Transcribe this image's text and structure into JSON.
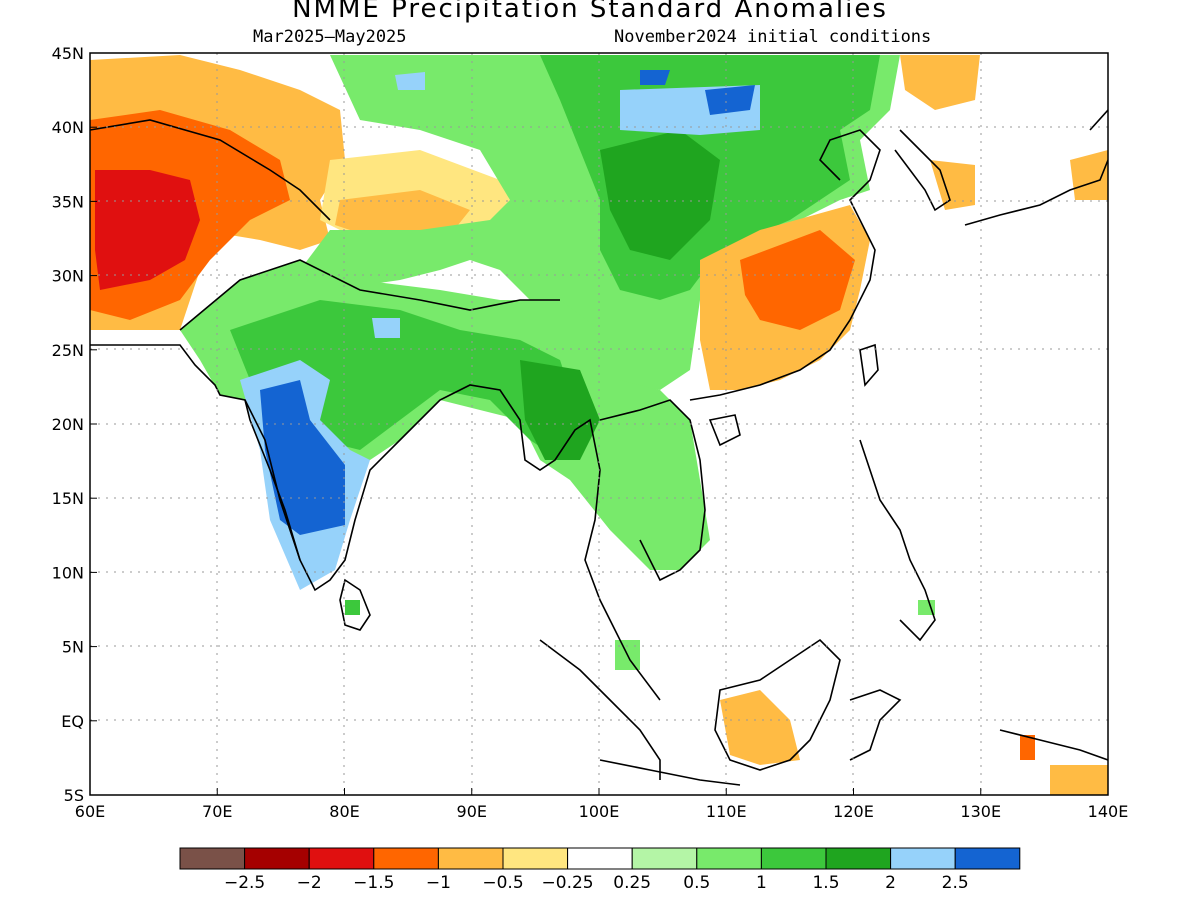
{
  "header": {
    "title": "NMME Precipitation Standard Anomalies",
    "period": "Mar2025–May2025",
    "init": "November2024 initial conditions"
  },
  "map": {
    "lon_range": [
      60,
      140
    ],
    "lat_range": [
      -5,
      45
    ],
    "lon_ticks": [
      {
        "value": 60,
        "label": "60E"
      },
      {
        "value": 70,
        "label": "70E"
      },
      {
        "value": 80,
        "label": "80E"
      },
      {
        "value": 90,
        "label": "90E"
      },
      {
        "value": 100,
        "label": "100E"
      },
      {
        "value": 110,
        "label": "110E"
      },
      {
        "value": 120,
        "label": "120E"
      },
      {
        "value": 130,
        "label": "130E"
      },
      {
        "value": 140,
        "label": "140E"
      }
    ],
    "lat_ticks": [
      {
        "value": 45,
        "label": "45N"
      },
      {
        "value": 40,
        "label": "40N"
      },
      {
        "value": 35,
        "label": "35N"
      },
      {
        "value": 30,
        "label": "30N"
      },
      {
        "value": 25,
        "label": "25N"
      },
      {
        "value": 20,
        "label": "20N"
      },
      {
        "value": 15,
        "label": "15N"
      },
      {
        "value": 10,
        "label": "10N"
      },
      {
        "value": 5,
        "label": "5N"
      },
      {
        "value": 0,
        "label": "EQ"
      },
      {
        "value": -5,
        "label": "5S"
      }
    ],
    "colors": {
      "lt_-2.5": "#7a5148",
      "-2.5_-2": "#a50000",
      "-2_-1.5": "#e01010",
      "-1.5_-1": "#ff6600",
      "-1_-0.5": "#ffbb44",
      "-0.5_-0.25": "#ffe680",
      "-0.25_0.25": "#ffffff",
      "0.25_0.5": "#b4f5a6",
      "0.5_1": "#78ea6b",
      "1_1.5": "#3cc83c",
      "1.5_2": "#1fa51f",
      "2_2.5": "#96d2fa",
      "gt_2.5": "#1464d2"
    }
  },
  "colorbar": {
    "colors": [
      "#7a5148",
      "#a50000",
      "#e01010",
      "#ff6600",
      "#ffbb44",
      "#ffe680",
      "#ffffff",
      "#b4f5a6",
      "#78ea6b",
      "#3cc83c",
      "#1fa51f",
      "#96d2fa",
      "#1464d2"
    ],
    "labels": [
      "−2.5",
      "−2",
      "−1.5",
      "−1",
      "−0.5",
      "−0.25",
      "0.25",
      "0.5",
      "1",
      "1.5",
      "2",
      "2.5"
    ]
  }
}
